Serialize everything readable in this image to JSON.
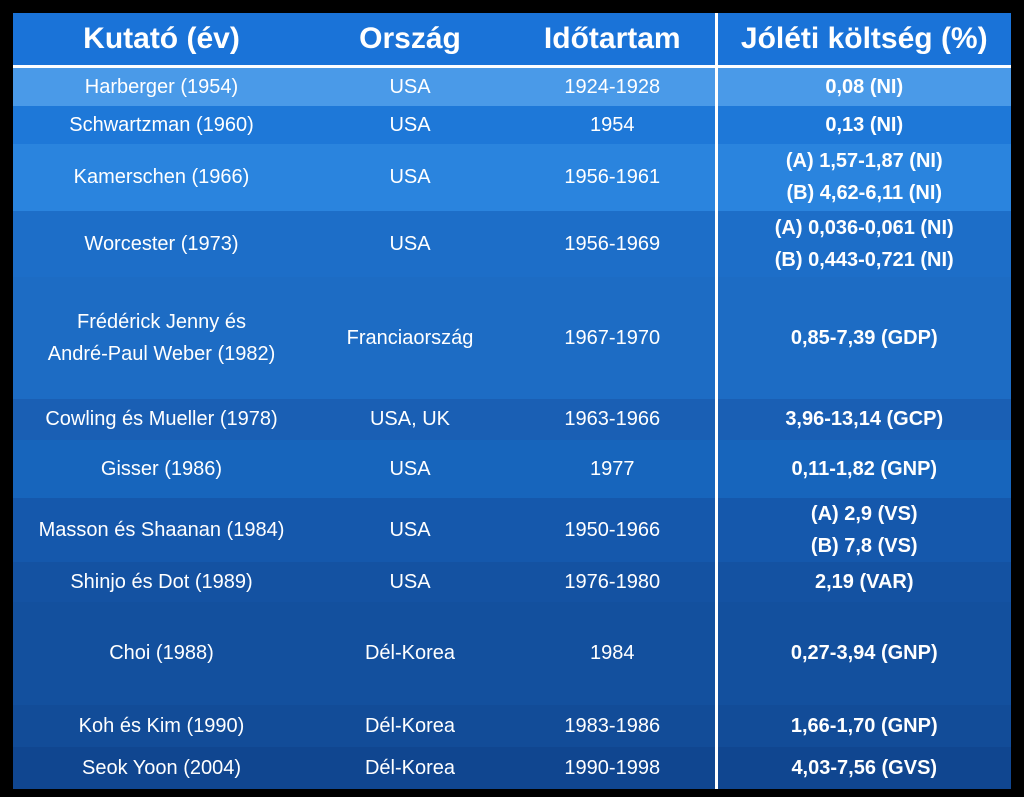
{
  "headers": [
    "Kutató (év)",
    "Ország",
    "Időtartam",
    "Jóléti költség (%)"
  ],
  "rows": [
    {
      "researcher": [
        "Harberger (1954)"
      ],
      "country": "USA",
      "period": "1924-1928",
      "cost": [
        "0,08 (NI)"
      ]
    },
    {
      "researcher": [
        "Schwartzman (1960)"
      ],
      "country": "USA",
      "period": "1954",
      "cost": [
        "0,13 (NI)"
      ]
    },
    {
      "researcher": [
        "Kamerschen (1966)"
      ],
      "country": "USA",
      "period": "1956-1961",
      "cost": [
        "(A) 1,57-1,87 (NI)",
        "(B) 4,62-6,11 (NI)"
      ]
    },
    {
      "researcher": [
        "Worcester (1973)"
      ],
      "country": "USA",
      "period": "1956-1969",
      "cost": [
        "(A) 0,036-0,061 (NI)",
        "(B) 0,443-0,721 (NI)"
      ]
    },
    {
      "researcher": [
        "Frédérick Jenny és",
        "André-Paul Weber (1982)"
      ],
      "country": "Franciaország",
      "period": "1967-1970",
      "cost": [
        "0,85-7,39 (GDP)"
      ]
    },
    {
      "researcher": [
        "Cowling és Mueller (1978)"
      ],
      "country": "USA, UK",
      "period": "1963-1966",
      "cost": [
        "3,96-13,14 (GCP)"
      ]
    },
    {
      "researcher": [
        "Gisser (1986)"
      ],
      "country": "USA",
      "period": "1977",
      "cost": [
        "0,11-1,82 (GNP)"
      ]
    },
    {
      "researcher": [
        "Masson és Shaanan (1984)"
      ],
      "country": "USA",
      "period": "1950-1966",
      "cost": [
        "(A) 2,9 (VS)",
        "(B) 7,8 (VS)"
      ]
    },
    {
      "researcher": [
        "Shinjo és Dot (1989)"
      ],
      "country": "USA",
      "period": "1976-1980",
      "cost": [
        "2,19 (VAR)"
      ]
    },
    {
      "researcher": [
        "Choi (1988)"
      ],
      "country": "Dél-Korea",
      "period": "1984",
      "cost": [
        "0,27-3,94 (GNP)"
      ]
    },
    {
      "researcher": [
        "Koh és Kim (1990)"
      ],
      "country": "Dél-Korea",
      "period": "1983-1986",
      "cost": [
        "1,66-1,70 (GNP)"
      ]
    },
    {
      "researcher": [
        "Seok Yoon (2004)"
      ],
      "country": "Dél-Korea",
      "period": "1990-1998",
      "cost": [
        "4,03-7,56 (GVS)"
      ]
    }
  ]
}
